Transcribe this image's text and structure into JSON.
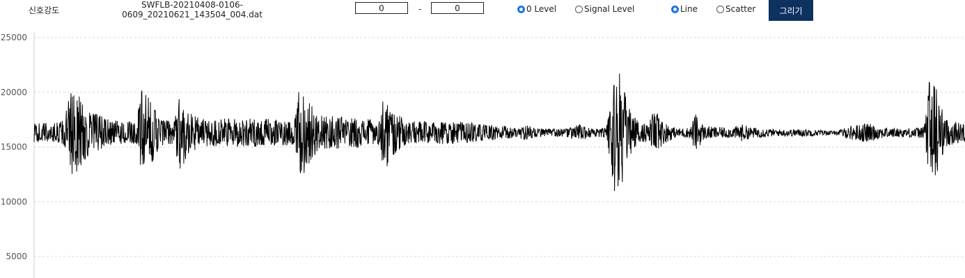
{
  "header": {
    "title": "신호강도",
    "filename_line1": "SWFLB-20210408-0106-",
    "filename_line2": "0609_20210621_143504_004.dat"
  },
  "range": {
    "start": "0",
    "separator": "-",
    "end": "0"
  },
  "level_options": [
    {
      "label": "0 Level",
      "checked": true
    },
    {
      "label": "Signal Level",
      "checked": false
    }
  ],
  "plot_options": [
    {
      "label": "Line",
      "checked": true
    },
    {
      "label": "Scatter",
      "checked": false
    }
  ],
  "draw_button": {
    "label": "그리기"
  },
  "colors": {
    "button_bg": "#0d3260",
    "line": "#000000",
    "grid": "#d9d9d9",
    "radio_checked": "#1a73e8"
  },
  "chart_data": {
    "type": "line",
    "title": "",
    "xlabel": "",
    "ylabel": "",
    "ylim": [
      2000,
      25000
    ],
    "yticks": [
      "25000",
      "20000",
      "15000",
      "10000",
      "5000"
    ],
    "ytick_values": [
      25000,
      20000,
      15000,
      10000,
      5000
    ],
    "grid": true,
    "baseline": 16300,
    "series": [
      {
        "envelope": [
          {
            "x": 0,
            "amp": 900
          },
          {
            "x": 3,
            "amp": 1000
          },
          {
            "x": 4,
            "amp": 3800
          },
          {
            "x": 5,
            "amp": 3500
          },
          {
            "x": 6,
            "amp": 2200
          },
          {
            "x": 7,
            "amp": 1700
          },
          {
            "x": 8,
            "amp": 1200
          },
          {
            "x": 11,
            "amp": 1000
          },
          {
            "x": 11.5,
            "amp": 4000
          },
          {
            "x": 12.5,
            "amp": 3000
          },
          {
            "x": 13.5,
            "amp": 1400
          },
          {
            "x": 15,
            "amp": 1100
          },
          {
            "x": 15.7,
            "amp": 3600
          },
          {
            "x": 16.6,
            "amp": 2000
          },
          {
            "x": 18,
            "amp": 1300
          },
          {
            "x": 25,
            "amp": 1300
          },
          {
            "x": 28,
            "amp": 1100
          },
          {
            "x": 28.5,
            "amp": 4200
          },
          {
            "x": 29.3,
            "amp": 3400
          },
          {
            "x": 30.5,
            "amp": 1600
          },
          {
            "x": 36,
            "amp": 1300
          },
          {
            "x": 37.2,
            "amp": 1100
          },
          {
            "x": 37.6,
            "amp": 4300
          },
          {
            "x": 38.3,
            "amp": 2300
          },
          {
            "x": 40,
            "amp": 1100
          },
          {
            "x": 46,
            "amp": 1000
          },
          {
            "x": 49,
            "amp": 700
          },
          {
            "x": 52,
            "amp": 500
          },
          {
            "x": 53,
            "amp": 700
          },
          {
            "x": 54,
            "amp": 400
          },
          {
            "x": 57,
            "amp": 350
          },
          {
            "x": 58.5,
            "amp": 800
          },
          {
            "x": 60,
            "amp": 350
          },
          {
            "x": 61.5,
            "amp": 450
          },
          {
            "x": 62.3,
            "amp": 6000
          },
          {
            "x": 63,
            "amp": 5400
          },
          {
            "x": 63.8,
            "amp": 2500
          },
          {
            "x": 65,
            "amp": 900
          },
          {
            "x": 66,
            "amp": 800
          },
          {
            "x": 66.6,
            "amp": 2200
          },
          {
            "x": 67.5,
            "amp": 1100
          },
          {
            "x": 69,
            "amp": 400
          },
          {
            "x": 70.5,
            "amp": 500
          },
          {
            "x": 71,
            "amp": 1800
          },
          {
            "x": 72,
            "amp": 600
          },
          {
            "x": 75,
            "amp": 450
          },
          {
            "x": 76,
            "amp": 800
          },
          {
            "x": 77,
            "amp": 500
          },
          {
            "x": 80,
            "amp": 300
          },
          {
            "x": 83,
            "amp": 350
          },
          {
            "x": 86,
            "amp": 150
          },
          {
            "x": 88,
            "amp": 700
          },
          {
            "x": 89.5,
            "amp": 900
          },
          {
            "x": 91,
            "amp": 500
          },
          {
            "x": 93,
            "amp": 400
          },
          {
            "x": 95.5,
            "amp": 500
          },
          {
            "x": 96.3,
            "amp": 6200
          },
          {
            "x": 97,
            "amp": 4200
          },
          {
            "x": 97.8,
            "amp": 1300
          },
          {
            "x": 100,
            "amp": 800
          }
        ]
      }
    ]
  }
}
